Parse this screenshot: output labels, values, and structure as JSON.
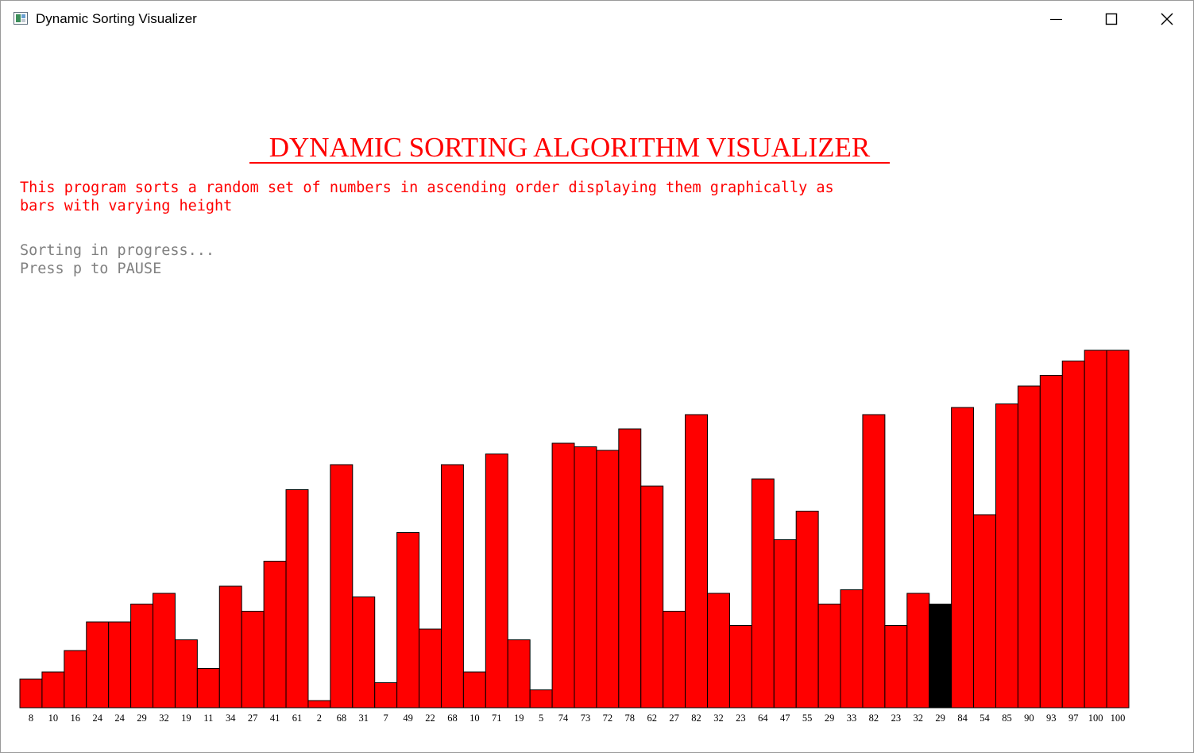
{
  "window": {
    "title": "Dynamic Sorting Visualizer",
    "icons": {
      "app": "app-window-icon",
      "minimize": "minimize-icon",
      "maximize": "maximize-icon",
      "close": "close-icon"
    }
  },
  "main": {
    "heading": "DYNAMIC SORTING ALGORITHM VISUALIZER",
    "description_line1": "This program sorts a random set of numbers in ascending order displaying them graphically as",
    "description_line2": "bars with varying height",
    "status_line1": "Sorting in progress...",
    "status_line2": "Press p to PAUSE"
  },
  "colors": {
    "bar": "#ff0000",
    "highlight": "#000000",
    "text": "#ff0000",
    "status": "#808080"
  },
  "chart_data": {
    "type": "bar",
    "values": [
      8,
      10,
      16,
      24,
      24,
      29,
      32,
      19,
      11,
      34,
      27,
      41,
      61,
      2,
      68,
      31,
      7,
      49,
      22,
      68,
      10,
      71,
      19,
      5,
      74,
      73,
      72,
      78,
      62,
      27,
      82,
      32,
      23,
      64,
      47,
      55,
      29,
      33,
      82,
      23,
      32,
      29,
      84,
      54,
      85,
      90,
      93,
      97,
      100,
      100
    ],
    "highlight_index": 41,
    "ylim": [
      0,
      100
    ],
    "grid": false,
    "legend": "none"
  }
}
